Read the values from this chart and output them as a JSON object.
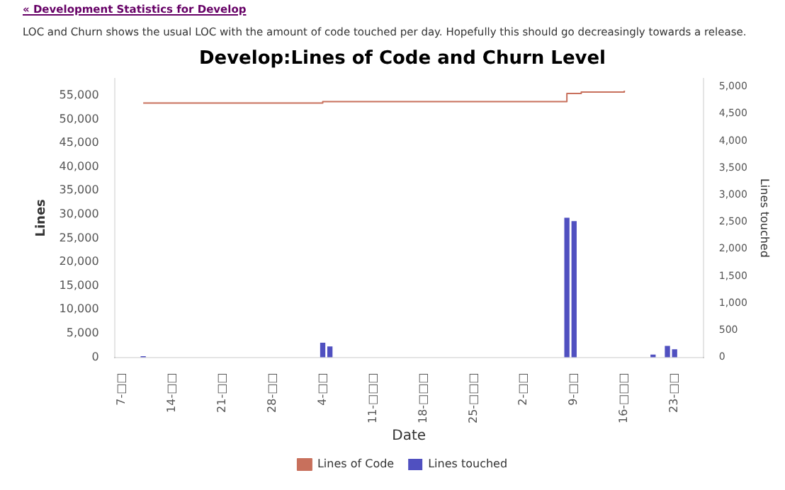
{
  "chart_data": {
    "type": "bar",
    "title": "Develop:Lines of Code and Churn Level",
    "xlabel": "Date",
    "ylabel": "Lines",
    "y2label": "Lines touched",
    "annotations": [
      "« Development Statistics for Develop",
      "LOC and Churn shows the usual LOC with the amount of code touched per day. Hopefully this should go decreasingly towards a release."
    ],
    "series": [
      {
        "name": "Lines of Code",
        "type": "step",
        "color": "#c8705c",
        "x": [
          "--03-10",
          "--04-04",
          "--05-08",
          "--05-10",
          "--05-16"
        ],
        "values": [
          53400,
          53700,
          55400,
          55700,
          56000
        ]
      },
      {
        "name": "Lines touched",
        "axis": "y2",
        "color": "#5050c0",
        "x": [
          "--03-10",
          "--04-04",
          "--04-05",
          "--05-08",
          "--05-09",
          "--05-20",
          "--05-22",
          "--05-23"
        ],
        "values": [
          10,
          260,
          190,
          2570,
          2510,
          40,
          200,
          140
        ]
      }
    ],
    "xlim": [
      "--03-06",
      "--05-27"
    ],
    "xticks": [
      {
        "value": "--03-07",
        "label": "7-□□"
      },
      {
        "value": "--03-14",
        "label": "14-□□"
      },
      {
        "value": "--03-21",
        "label": "21-□□"
      },
      {
        "value": "--03-28",
        "label": "28-□□"
      },
      {
        "value": "--04-04",
        "label": "4-□□"
      },
      {
        "value": "--04-11",
        "label": "11-□□□"
      },
      {
        "value": "--04-18",
        "label": "18-□□□"
      },
      {
        "value": "--04-25",
        "label": "25-□□□"
      },
      {
        "value": "--05-02",
        "label": "2-□□"
      },
      {
        "value": "--05-09",
        "label": "9-□□"
      },
      {
        "value": "--05-16",
        "label": "16-□□□"
      },
      {
        "value": "--05-23",
        "label": "23-□□"
      }
    ],
    "ylim": [
      0,
      58500
    ],
    "yticks": [
      0,
      {
        "value": 5000,
        "label": "5,000"
      },
      {
        "value": 10000,
        "label": "10,000"
      },
      {
        "value": 15000,
        "label": "15,000"
      },
      {
        "value": 20000,
        "label": "20,000"
      },
      {
        "value": 25000,
        "label": "25,000"
      },
      {
        "value": 30000,
        "label": "30,000"
      },
      {
        "value": 35000,
        "label": "35,000"
      },
      {
        "value": 40000,
        "label": "40,000"
      },
      {
        "value": 45000,
        "label": "45,000"
      },
      {
        "value": 50000,
        "label": "50,000"
      },
      {
        "value": 55000,
        "label": "55,000"
      }
    ],
    "y2lim": [
      0,
      5150
    ],
    "y2ticks": [
      0,
      500,
      {
        "value": 1000,
        "label": "1,000"
      },
      {
        "value": 1500,
        "label": "1,500"
      },
      {
        "value": 2000,
        "label": "2,000"
      },
      {
        "value": 2500,
        "label": "2,500"
      },
      {
        "value": 3000,
        "label": "3,000"
      },
      {
        "value": 3500,
        "label": "3,500"
      },
      {
        "value": 4000,
        "label": "4,000"
      },
      {
        "value": 4500,
        "label": "4,500"
      },
      {
        "value": 5000,
        "label": "5,000"
      }
    ],
    "grid": false,
    "legend": "bottom"
  }
}
